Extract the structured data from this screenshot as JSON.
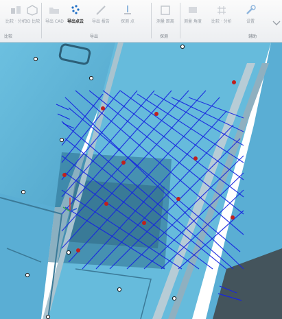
{
  "ribbon": {
    "groups": [
      {
        "name": "group-analyze",
        "label": "比较"
      },
      {
        "name": "group-export",
        "label": "导出"
      },
      {
        "name": "group-probe",
        "label": "探测"
      },
      {
        "name": "group-assist",
        "label": "辅助"
      }
    ],
    "buttons": [
      {
        "name": "compare-button",
        "label": "比较 · 分析"
      },
      {
        "name": "cross-section-button",
        "label": "3D 比较"
      },
      {
        "name": "export-points-button",
        "label": "导出点云"
      },
      {
        "name": "export-cad-button",
        "label": "导出 CAD"
      },
      {
        "name": "export-report-button",
        "label": "导出 报告"
      },
      {
        "name": "probe-button",
        "label": "探测 点"
      },
      {
        "name": "measure-distance-button",
        "label": "测量 距离"
      },
      {
        "name": "measure-angle-button",
        "label": "测量 角度"
      },
      {
        "name": "settings-button",
        "label": "设置"
      }
    ],
    "active_button": "export-points-button",
    "accent_color": "#1f6fc6"
  },
  "viewport": {
    "surface_color": "#5fb2d6",
    "scan_line_color": "#1726e0",
    "marker_color": "#c0201c",
    "reference_point_color": "#ffffff"
  }
}
